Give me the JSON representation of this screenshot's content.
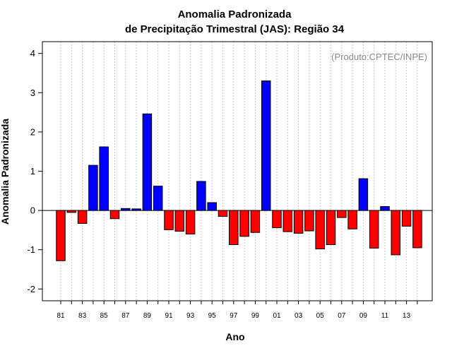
{
  "chart_data": {
    "type": "bar",
    "title_lines": [
      "Anomalia Padronizada",
      "de Precipitação Trimestral (JAS): Região 34"
    ],
    "xlabel": "Ano",
    "ylabel": "Anomalia Padronizada",
    "credit": "(Produto:CPTEC/INPE)",
    "ylim": [
      -2.3,
      4.3
    ],
    "yticks": [
      -2,
      -1,
      0,
      1,
      2,
      3,
      4
    ],
    "categories": [
      "81",
      "82",
      "83",
      "84",
      "85",
      "86",
      "87",
      "88",
      "89",
      "90",
      "91",
      "92",
      "93",
      "94",
      "95",
      "96",
      "97",
      "98",
      "99",
      "00",
      "01",
      "02",
      "03",
      "04",
      "05",
      "06",
      "07",
      "08",
      "09",
      "10",
      "11",
      "12",
      "13",
      "14"
    ],
    "x_tick_labels": [
      "81",
      "83",
      "85",
      "87",
      "89",
      "91",
      "93",
      "95",
      "97",
      "99",
      "01",
      "03",
      "05",
      "07",
      "09",
      "11",
      "13"
    ],
    "values": [
      -1.28,
      -0.05,
      -0.33,
      1.15,
      1.62,
      -0.21,
      0.05,
      0.04,
      2.46,
      0.62,
      -0.49,
      -0.53,
      -0.6,
      0.74,
      0.2,
      -0.15,
      -0.87,
      -0.66,
      -0.56,
      3.3,
      -0.44,
      -0.54,
      -0.58,
      -0.52,
      -0.98,
      -0.87,
      -0.18,
      -0.47,
      0.81,
      -0.96,
      0.1,
      -1.13,
      -0.4,
      -0.95
    ],
    "grid": "vertical-dotted",
    "colors": {
      "positive": "#0000ff",
      "negative": "#ff0000",
      "grid": "#c8c8c8",
      "credit": "#888888"
    }
  }
}
